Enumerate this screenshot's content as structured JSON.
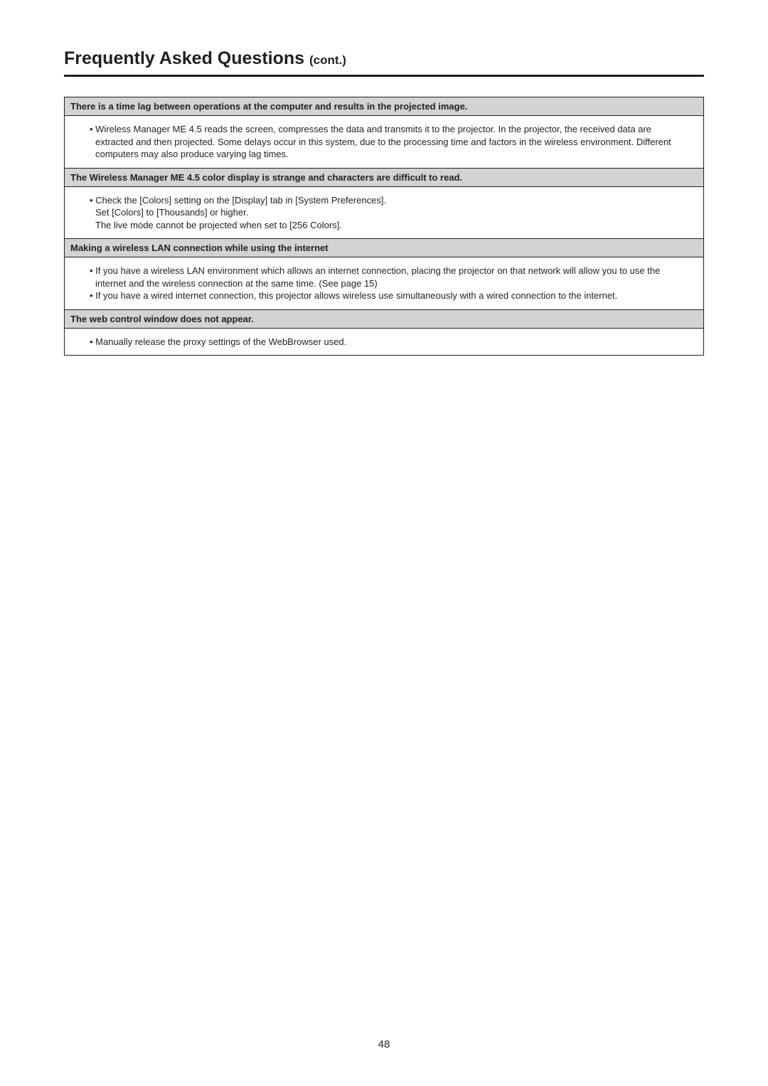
{
  "title": {
    "main": "Frequently Asked Questions ",
    "cont": "(cont.)"
  },
  "faq": [
    {
      "q": "There is a time lag between operations at the computer and results in the projected image.",
      "a": [
        {
          "type": "bullet",
          "text": "• Wireless Manager ME 4.5 reads the screen, compresses the data and transmits it to the projector. In the projector, the received data are extracted and then projected. Some delays occur in this system, due to the processing time and factors in the wireless environment. Different computers may also produce varying lag times."
        }
      ]
    },
    {
      "q": "The Wireless Manager ME 4.5 color display is strange and characters are difficult to read.",
      "a": [
        {
          "type": "bullet",
          "text": "• Check the [Colors] setting on the [Display] tab in [System Preferences]."
        },
        {
          "type": "plain",
          "text": "Set [Colors] to [Thousands] or higher."
        },
        {
          "type": "plain",
          "text": "The live mode cannot be projected when set to [256 Colors]."
        }
      ]
    },
    {
      "q": "Making a wireless LAN connection while using the internet",
      "a": [
        {
          "type": "bullet",
          "text": "• If you have a wireless LAN environment which allows an internet connection, placing the projector on that network will allow you to use the internet and the wireless connection at the same time. (See page 15)"
        },
        {
          "type": "bullet",
          "text": "• If you have a wired internet connection, this projector allows wireless use simultaneously with a wired connection to the internet."
        }
      ]
    },
    {
      "q": "The web control window does not appear.",
      "a": [
        {
          "type": "bullet",
          "text": "• Manually release the proxy settings of the WebBrowser used."
        }
      ]
    }
  ],
  "pageNumber": "48"
}
